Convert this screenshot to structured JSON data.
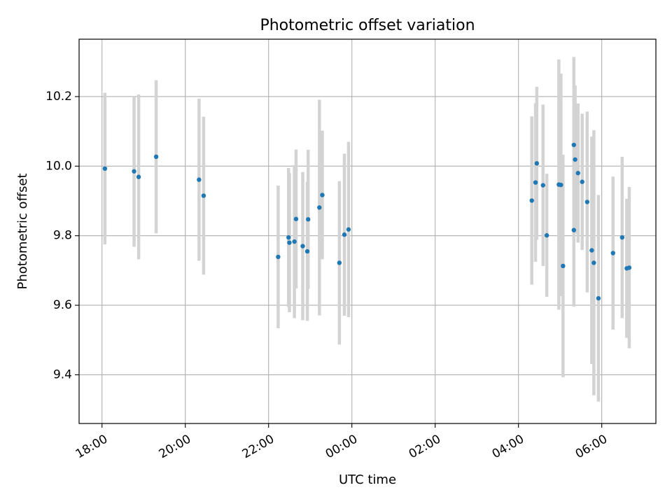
{
  "chart_data": {
    "type": "scatter",
    "title": "Photometric offset variation",
    "xlabel": "UTC time",
    "ylabel": "Photometric offset",
    "x_unit": "UTC time (hours, day boundary at 00:00)",
    "x_ticks": [
      {
        "x": 18,
        "label": "18:00"
      },
      {
        "x": 20,
        "label": "20:00"
      },
      {
        "x": 22,
        "label": "22:00"
      },
      {
        "x": 24,
        "label": "00:00"
      },
      {
        "x": 26,
        "label": "02:00"
      },
      {
        "x": 28,
        "label": "04:00"
      },
      {
        "x": 30,
        "label": "06:00"
      }
    ],
    "y_ticks": [
      {
        "y": 9.4,
        "label": "9.4"
      },
      {
        "y": 9.6,
        "label": "9.6"
      },
      {
        "y": 9.8,
        "label": "9.8"
      },
      {
        "y": 10.0,
        "label": "10.0"
      },
      {
        "y": 10.2,
        "label": "10.2"
      }
    ],
    "xlim": [
      17.45,
      31.3
    ],
    "ylim": [
      9.26,
      10.365
    ],
    "grid": true,
    "colors": {
      "marker": "#1f77b4",
      "errorbar": "#d3d3d3",
      "grid": "#b0b0b0"
    },
    "points": [
      {
        "x": 18.07,
        "y": 9.993,
        "err": 0.218
      },
      {
        "x": 18.77,
        "y": 9.985,
        "err": 0.217
      },
      {
        "x": 18.88,
        "y": 9.969,
        "err": 0.237
      },
      {
        "x": 19.3,
        "y": 10.027,
        "err": 0.22
      },
      {
        "x": 20.33,
        "y": 9.961,
        "err": 0.233
      },
      {
        "x": 20.44,
        "y": 9.915,
        "err": 0.227
      },
      {
        "x": 22.23,
        "y": 9.739,
        "err": 0.205
      },
      {
        "x": 22.48,
        "y": 9.795,
        "err": 0.2
      },
      {
        "x": 22.5,
        "y": 9.78,
        "err": 0.2
      },
      {
        "x": 22.62,
        "y": 9.783,
        "err": 0.22
      },
      {
        "x": 22.66,
        "y": 9.848,
        "err": 0.2
      },
      {
        "x": 22.82,
        "y": 9.77,
        "err": 0.213
      },
      {
        "x": 22.93,
        "y": 9.755,
        "err": 0.2
      },
      {
        "x": 22.95,
        "y": 9.847,
        "err": 0.2
      },
      {
        "x": 23.22,
        "y": 9.881,
        "err": 0.31
      },
      {
        "x": 23.29,
        "y": 9.917,
        "err": 0.185
      },
      {
        "x": 23.7,
        "y": 9.722,
        "err": 0.235
      },
      {
        "x": 23.82,
        "y": 9.803,
        "err": 0.233
      },
      {
        "x": 23.92,
        "y": 9.818,
        "err": 0.252
      },
      {
        "x": 28.97,
        "y": 9.947,
        "err": 0.36
      },
      {
        "x": 29.02,
        "y": 9.946,
        "err": 0.32
      },
      {
        "x": 29.07,
        "y": 9.713,
        "err": 0.32
      },
      {
        "x": 29.33,
        "y": 10.061,
        "err": 0.253
      },
      {
        "x": 29.36,
        "y": 10.019,
        "err": 0.213
      },
      {
        "x": 29.43,
        "y": 9.98,
        "err": 0.2
      },
      {
        "x": 29.53,
        "y": 9.955,
        "err": 0.196
      },
      {
        "x": 29.65,
        "y": 9.897,
        "err": 0.26
      },
      {
        "x": 29.76,
        "y": 9.758,
        "err": 0.327
      },
      {
        "x": 29.81,
        "y": 9.722,
        "err": 0.381
      },
      {
        "x": 28.32,
        "y": 9.901,
        "err": 0.242
      },
      {
        "x": 28.41,
        "y": 9.953,
        "err": 0.228
      },
      {
        "x": 28.44,
        "y": 10.008,
        "err": 0.22
      },
      {
        "x": 28.59,
        "y": 9.945,
        "err": 0.232
      },
      {
        "x": 28.68,
        "y": 9.801,
        "err": 0.177
      },
      {
        "x": 29.33,
        "y": 9.816,
        "err": 0.22
      },
      {
        "x": 29.92,
        "y": 9.62,
        "err": 0.297
      },
      {
        "x": 30.27,
        "y": 9.75,
        "err": 0.22
      },
      {
        "x": 30.49,
        "y": 9.795,
        "err": 0.232
      },
      {
        "x": 30.6,
        "y": 9.706,
        "err": 0.2
      },
      {
        "x": 30.66,
        "y": 9.708,
        "err": 0.232
      }
    ]
  }
}
